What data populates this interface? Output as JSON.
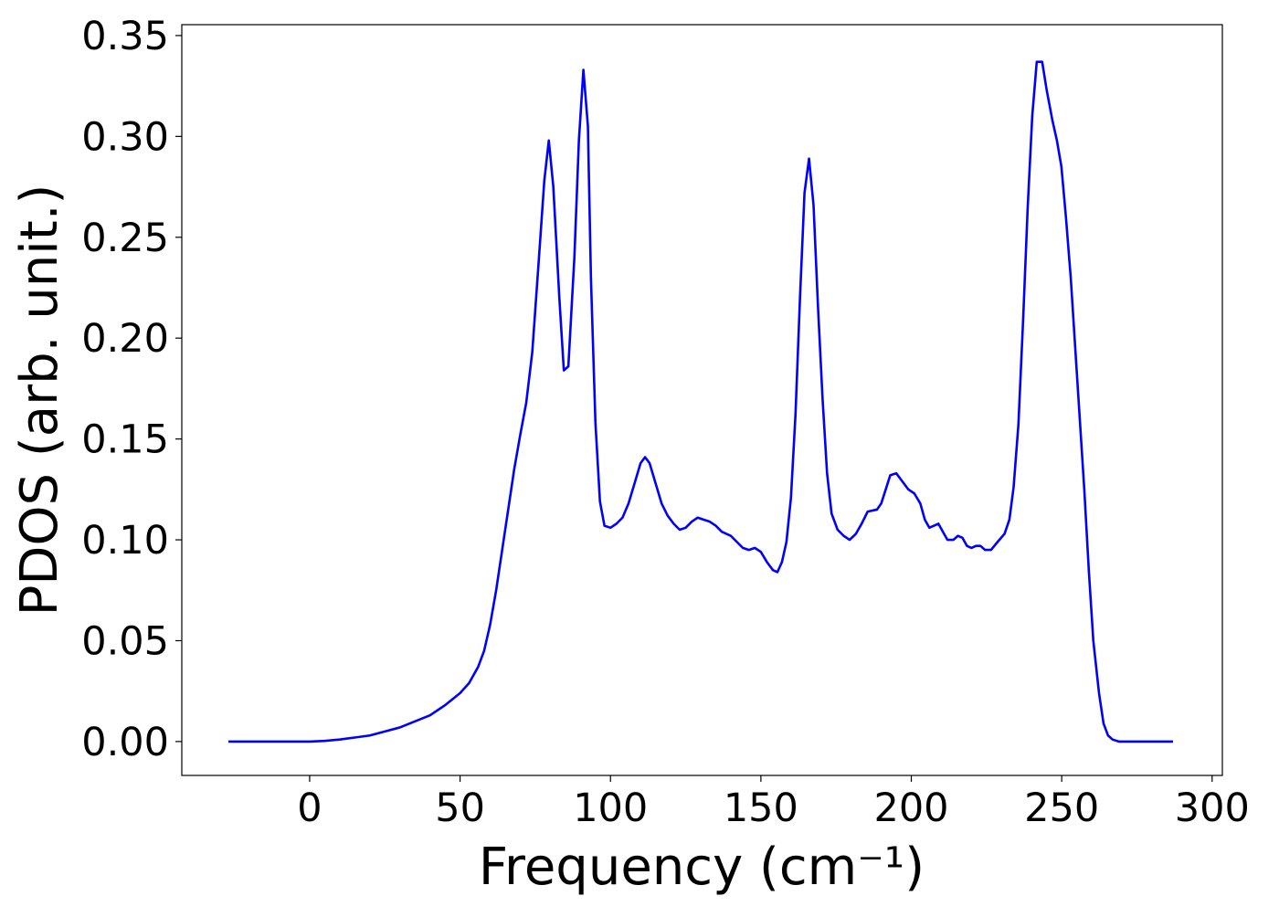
{
  "chart_data": {
    "type": "line",
    "xlabel": "Frequency (cm⁻¹)",
    "ylabel": "PDOS (arb. unit.)",
    "x": [
      -27,
      0,
      5,
      10,
      15,
      20,
      25,
      30,
      35,
      40,
      45,
      50,
      53,
      56,
      58,
      60,
      62,
      64,
      66,
      68,
      70,
      72,
      74,
      76,
      78,
      79.5,
      81,
      83,
      84.5,
      86,
      88,
      89.5,
      91,
      92.5,
      93.5,
      95,
      96.5,
      98,
      100,
      102,
      104,
      106,
      108,
      110,
      111.5,
      113,
      115,
      117,
      119,
      121,
      123,
      125,
      127,
      129,
      131,
      133,
      135,
      137,
      140,
      142,
      144,
      146,
      148,
      150,
      152,
      154,
      155.5,
      157,
      158.5,
      160,
      161.5,
      163,
      164.5,
      166,
      167.5,
      169,
      170.5,
      172,
      173.5,
      175.5,
      177.5,
      179.5,
      181.6,
      183.5,
      185.5,
      188.6,
      190,
      193,
      195,
      197,
      199,
      201,
      203,
      204.5,
      206,
      209,
      212,
      214,
      215.5,
      217,
      218.5,
      220,
      221.5,
      223,
      224.5,
      226.5,
      228.7,
      231,
      232.6,
      234,
      235.6,
      237.2,
      238.7,
      240.2,
      241.7,
      243.5,
      245,
      246.9,
      248.4,
      249.9,
      251.4,
      253,
      254.5,
      256,
      257.5,
      259,
      260.5,
      262.4,
      263.9,
      265.4,
      266.9,
      269,
      287
    ],
    "series": [
      {
        "name": "PDOS",
        "color": "#0000ff",
        "values": [
          0,
          0,
          0.0003,
          0.001,
          0.002,
          0.003,
          0.005,
          0.007,
          0.01,
          0.013,
          0.018,
          0.024,
          0.029,
          0.037,
          0.045,
          0.058,
          0.075,
          0.095,
          0.115,
          0.135,
          0.152,
          0.168,
          0.193,
          0.235,
          0.278,
          0.298,
          0.275,
          0.22,
          0.184,
          0.186,
          0.24,
          0.298,
          0.333,
          0.305,
          0.23,
          0.158,
          0.119,
          0.107,
          0.106,
          0.108,
          0.111,
          0.118,
          0.128,
          0.138,
          0.141,
          0.138,
          0.128,
          0.118,
          0.112,
          0.108,
          0.105,
          0.106,
          0.109,
          0.111,
          0.11,
          0.109,
          0.107,
          0.104,
          0.102,
          0.099,
          0.096,
          0.095,
          0.096,
          0.094,
          0.089,
          0.085,
          0.084,
          0.089,
          0.099,
          0.121,
          0.162,
          0.22,
          0.272,
          0.289,
          0.266,
          0.215,
          0.17,
          0.133,
          0.113,
          0.105,
          0.102,
          0.1,
          0.103,
          0.108,
          0.114,
          0.115,
          0.118,
          0.132,
          0.133,
          0.129,
          0.125,
          0.123,
          0.118,
          0.11,
          0.106,
          0.108,
          0.1,
          0.1,
          0.102,
          0.101,
          0.097,
          0.096,
          0.097,
          0.097,
          0.095,
          0.095,
          0.099,
          0.103,
          0.11,
          0.126,
          0.157,
          0.21,
          0.265,
          0.31,
          0.337,
          0.337,
          0.323,
          0.308,
          0.298,
          0.285,
          0.26,
          0.23,
          0.195,
          0.16,
          0.125,
          0.085,
          0.05,
          0.024,
          0.009,
          0.003,
          0.001,
          0,
          0
        ]
      }
    ],
    "xlim": [
      -42.5,
      303.4
    ],
    "xticks": [
      0,
      50,
      100,
      150,
      200,
      250,
      300
    ],
    "ylim": [
      -0.0168,
      0.3554
    ],
    "yticks": [
      {
        "value": 0,
        "label": "0.00"
      },
      {
        "value": 0.05,
        "label": "0.05"
      },
      {
        "value": 0.1,
        "label": "0.10"
      },
      {
        "value": 0.15,
        "label": "0.15"
      },
      {
        "value": 0.2,
        "label": "0.20"
      },
      {
        "value": 0.25,
        "label": "0.25"
      },
      {
        "value": 0.3,
        "label": "0.30"
      },
      {
        "value": 0.35,
        "label": "0.35"
      }
    ],
    "grid": false
  }
}
